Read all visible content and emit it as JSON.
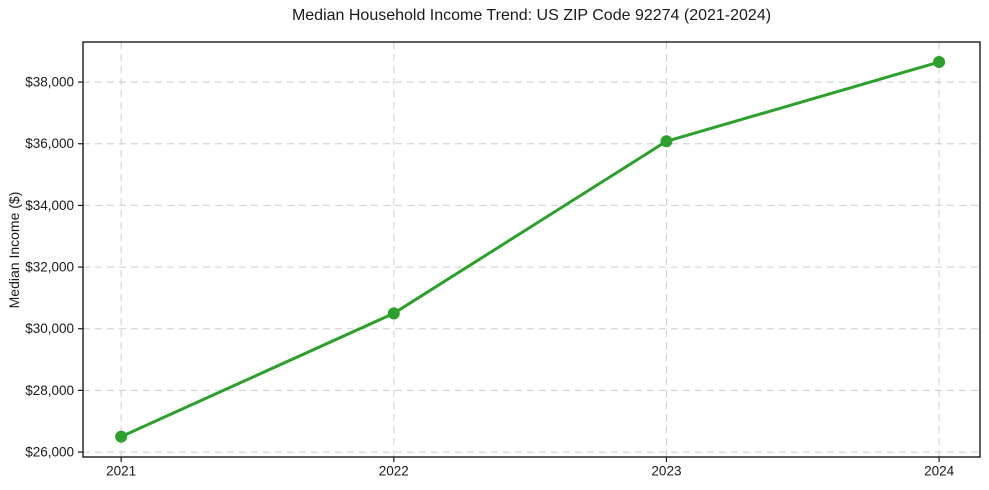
{
  "chart_data": {
    "type": "line",
    "title": "Median Household Income Trend: US ZIP Code 92274 (2021-2024)",
    "xlabel": "",
    "ylabel": "Median Income ($)",
    "x": [
      2021,
      2022,
      2023,
      2024
    ],
    "x_tick_labels": [
      "2021",
      "2022",
      "2023",
      "2024"
    ],
    "values": [
      26500,
      30500,
      36080,
      38650
    ],
    "y_ticks": [
      26000,
      28000,
      30000,
      32000,
      34000,
      36000,
      38000
    ],
    "y_tick_labels": [
      "$26,000",
      "$28,000",
      "$30,000",
      "$32,000",
      "$34,000",
      "$36,000",
      "$38,000"
    ],
    "xlim": [
      2020.86,
      2024.15
    ],
    "ylim": [
      25840,
      39300
    ],
    "grid": true,
    "grid_style": "dashed",
    "legend_position": "none",
    "line_color": "#2ca02c",
    "marker": "circle",
    "grid_color": "#cecece",
    "spine_color": "#1a1a1a",
    "background_color": "#ffffff"
  }
}
